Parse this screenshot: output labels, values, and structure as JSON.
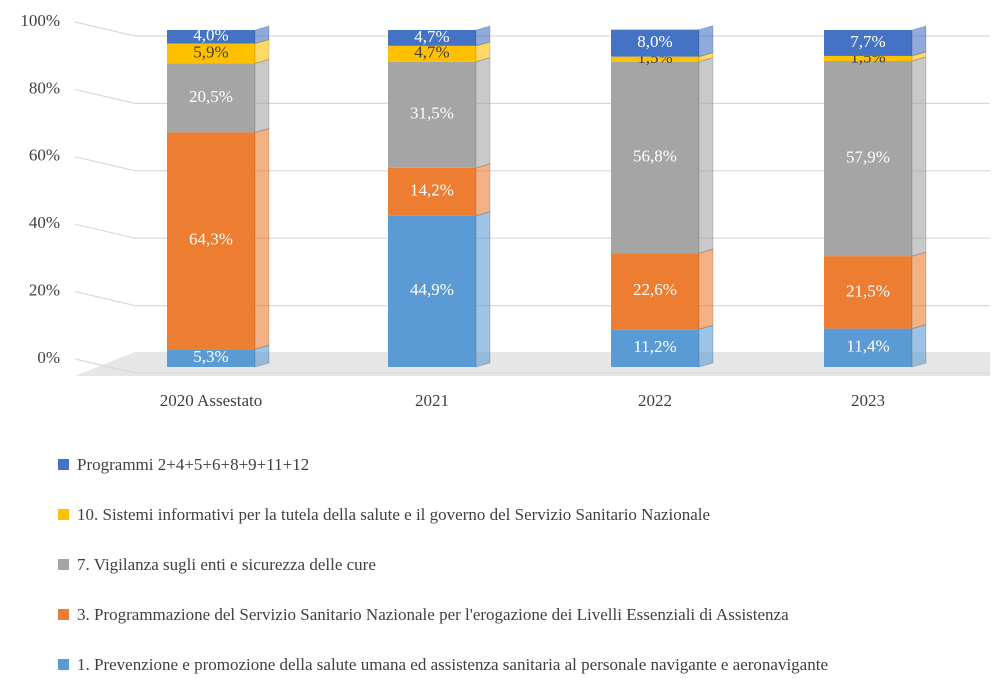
{
  "chart_data": {
    "type": "bar",
    "stacked": true,
    "categories": [
      "2020 Assestato",
      "2021",
      "2022",
      "2023"
    ],
    "series": [
      {
        "name": "1. Prevenzione e promozione della salute umana ed assistenza sanitaria al personale navigante e aeronavigante",
        "color": "#5b9bd5",
        "values": [
          5.3,
          44.9,
          11.2,
          11.4
        ],
        "value_labels": [
          "5,3%",
          "44,9%",
          "11,2%",
          "11,4%"
        ]
      },
      {
        "name": "3. Programmazione del Servizio Sanitario Nazionale per l'erogazione dei Livelli Essenziali di Assistenza",
        "color": "#ed7d31",
        "values": [
          64.3,
          14.2,
          22.6,
          21.5
        ],
        "value_labels": [
          "64,3%",
          "14,2%",
          "22,6%",
          "21,5%"
        ]
      },
      {
        "name": "7. Vigilanza sugli enti e sicurezza delle cure",
        "color": "#a5a5a5",
        "values": [
          20.5,
          31.5,
          56.8,
          57.9
        ],
        "value_labels": [
          "20,5%",
          "31,5%",
          "56,8%",
          "57,9%"
        ]
      },
      {
        "name": "10. Sistemi informativi per la tutela della salute e il governo del Servizio Sanitario Nazionale",
        "color": "#ffc000",
        "values": [
          5.9,
          4.7,
          1.5,
          1.5
        ],
        "value_labels": [
          "5,9%",
          "4,7%",
          "1,5%",
          "1,5%"
        ]
      },
      {
        "name": "Programmi 2+4+5+6+8+9+11+12",
        "color": "#4472c4",
        "values": [
          4.0,
          4.7,
          8.0,
          7.7
        ],
        "value_labels": [
          "4,0%",
          "4,7%",
          "8,0%",
          "7,7%"
        ]
      }
    ],
    "ylim": [
      0,
      100
    ],
    "yticks": [
      {
        "value": 0,
        "label": "0%"
      },
      {
        "value": 20,
        "label": "20%"
      },
      {
        "value": 40,
        "label": "40%"
      },
      {
        "value": 60,
        "label": "60%"
      },
      {
        "value": 80,
        "label": "80%"
      },
      {
        "value": 100,
        "label": "100%"
      }
    ],
    "grid": true,
    "legend": "bottom"
  }
}
